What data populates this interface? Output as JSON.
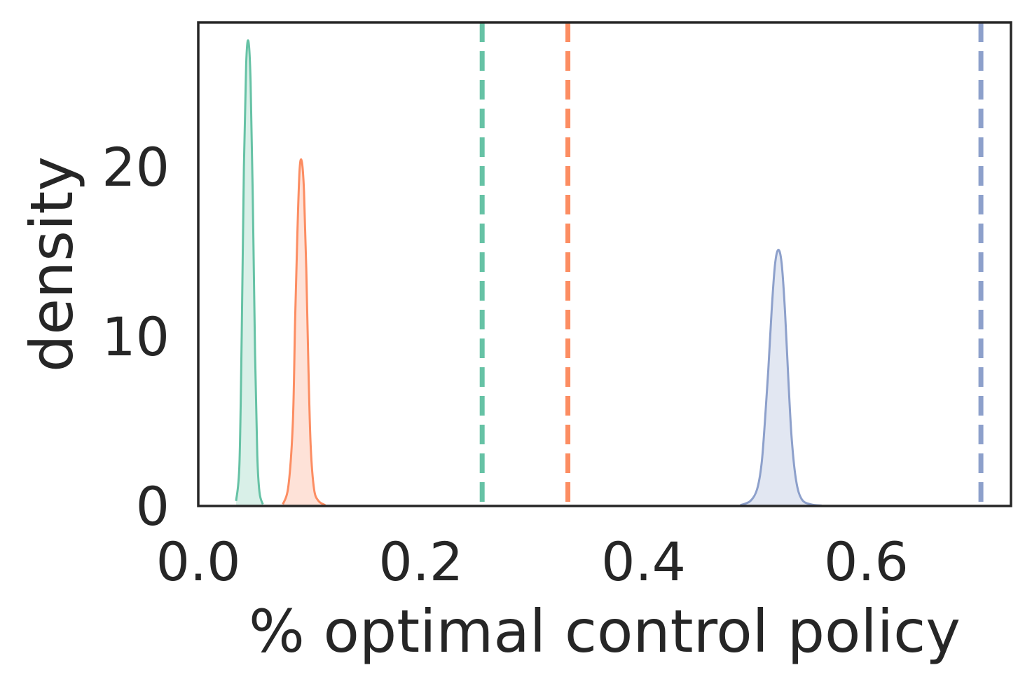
{
  "chart_data": {
    "type": "area",
    "title": "",
    "xlabel": "% optimal control policy",
    "ylabel": "density",
    "xlim": [
      0.0,
      0.73
    ],
    "ylim": [
      0,
      28.5
    ],
    "xticks": [
      {
        "value": 0.0,
        "label": "0.0"
      },
      {
        "value": 0.2,
        "label": "0.2"
      },
      {
        "value": 0.4,
        "label": "0.4"
      },
      {
        "value": 0.6,
        "label": "0.6"
      }
    ],
    "yticks": [
      {
        "value": 0,
        "label": "0"
      },
      {
        "value": 10,
        "label": "10"
      },
      {
        "value": 20,
        "label": "20"
      }
    ],
    "grid": false,
    "legend": false,
    "series": [
      {
        "color": "#66c2a5",
        "x": [
          0.034,
          0.037,
          0.039,
          0.041,
          0.043,
          0.045,
          0.047,
          0.049,
          0.051,
          0.053,
          0.055,
          0.058
        ],
        "y": [
          0.3,
          2.5,
          10,
          20,
          26,
          27.4,
          25,
          18,
          9,
          3,
          0.8,
          0.1
        ],
        "reference_x": 0.255
      },
      {
        "color": "#fc8d62",
        "x": [
          0.076,
          0.081,
          0.085,
          0.087,
          0.089,
          0.091,
          0.093,
          0.095,
          0.097,
          0.099,
          0.101,
          0.104,
          0.108,
          0.114
        ],
        "y": [
          0.1,
          1.2,
          5,
          11,
          16,
          19.8,
          20.3,
          18.5,
          14,
          8,
          3.5,
          1,
          0.3,
          0.05
        ],
        "reference_x": 0.332
      },
      {
        "color": "#8da0cb",
        "x": [
          0.487,
          0.496,
          0.502,
          0.506,
          0.509,
          0.512,
          0.515,
          0.518,
          0.521,
          0.524,
          0.527,
          0.53,
          0.533,
          0.537,
          0.542,
          0.55,
          0.56
        ],
        "y": [
          0.05,
          0.3,
          1,
          2.5,
          5,
          8,
          11.5,
          14.2,
          15.1,
          14.3,
          11.5,
          7.5,
          4,
          1.5,
          0.4,
          0.1,
          0.02
        ],
        "reference_x": 0.703
      }
    ]
  }
}
